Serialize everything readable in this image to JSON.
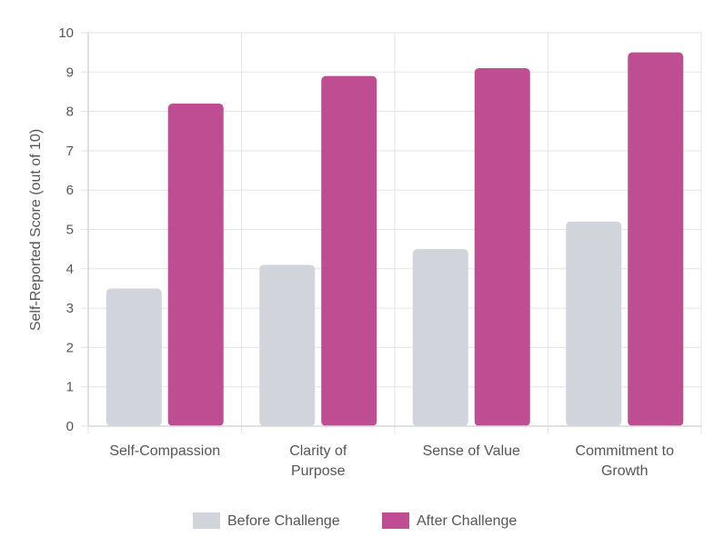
{
  "chart_data": {
    "type": "bar",
    "title": "",
    "xlabel": "",
    "ylabel": "Self-Reported Score (out of 10)",
    "ylim": [
      0,
      10
    ],
    "yticks": [
      0,
      1,
      2,
      3,
      4,
      5,
      6,
      7,
      8,
      9,
      10
    ],
    "grid": true,
    "legend_position": "bottom",
    "categories": [
      [
        "Self-Compassion"
      ],
      [
        "Clarity of",
        "Purpose"
      ],
      [
        "Sense of Value"
      ],
      [
        "Commitment to",
        "Growth"
      ]
    ],
    "series": [
      {
        "name": "Before Challenge",
        "color": "#d1d5db",
        "values": [
          3.5,
          4.1,
          4.5,
          5.2
        ]
      },
      {
        "name": "After Challenge",
        "color": "#be4d92",
        "values": [
          8.2,
          8.9,
          9.1,
          9.5
        ]
      }
    ]
  }
}
